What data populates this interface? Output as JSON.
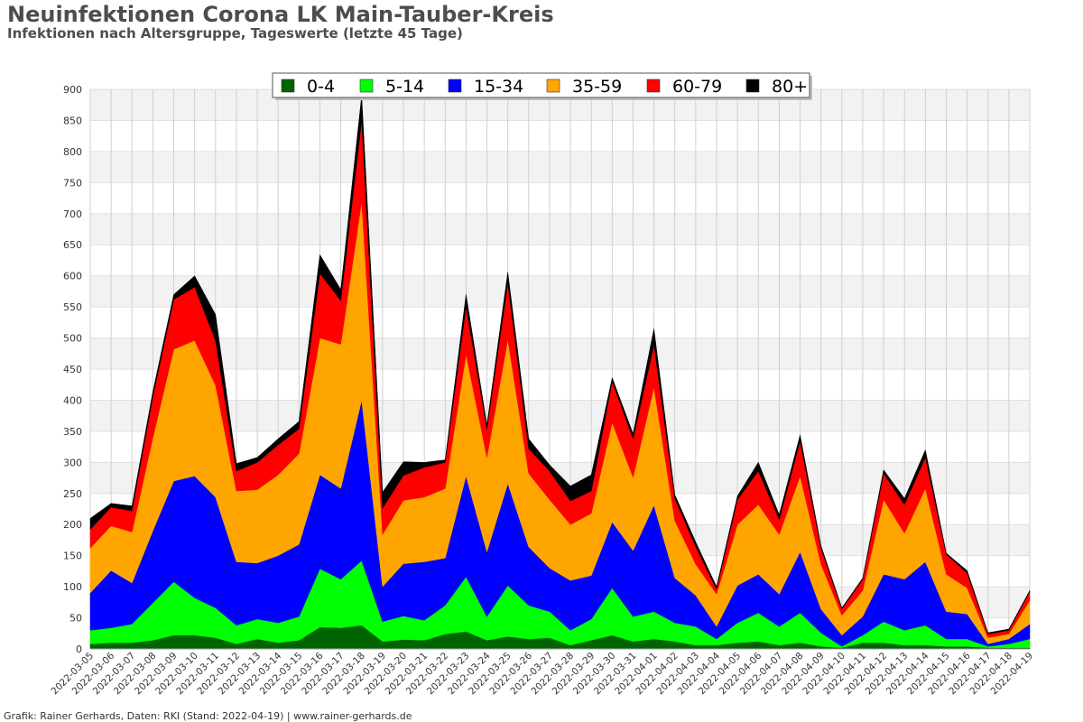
{
  "header": {
    "title": "Neuinfektionen Corona LK Main-Tauber-Kreis",
    "subtitle": "Infektionen nach Altersgruppe, Tageswerte (letzte 45 Tage)"
  },
  "footer": {
    "text": "Grafik: Rainer Gerhards, Daten: RKI (Stand: 2022-04-19) | www.rainer-gerhards.de"
  },
  "chart_data": {
    "type": "area",
    "stacked": true,
    "title": "Neuinfektionen Corona LK Main-Tauber-Kreis",
    "subtitle": "Infektionen nach Altersgruppe, Tageswerte (letzte 45 Tage)",
    "xlabel": "",
    "ylabel": "",
    "ylim": [
      0,
      900
    ],
    "yticks": [
      0,
      50,
      100,
      150,
      200,
      250,
      300,
      350,
      400,
      450,
      500,
      550,
      600,
      650,
      700,
      750,
      800,
      850,
      900
    ],
    "grid": true,
    "legend_position": "top",
    "categories": [
      "2022-03-05",
      "2022-03-06",
      "2022-03-07",
      "2022-03-08",
      "2022-03-09",
      "2022-03-10",
      "2022-03-11",
      "2022-03-12",
      "2022-03-13",
      "2022-03-14",
      "2022-03-15",
      "2022-03-16",
      "2022-03-17",
      "2022-03-18",
      "2022-03-19",
      "2022-03-20",
      "2022-03-21",
      "2022-03-22",
      "2022-03-23",
      "2022-03-24",
      "2022-03-25",
      "2022-03-26",
      "2022-03-27",
      "2022-03-28",
      "2022-03-29",
      "2022-03-30",
      "2022-03-31",
      "2022-04-01",
      "2022-04-02",
      "2022-04-03",
      "2022-04-04",
      "2022-04-05",
      "2022-04-06",
      "2022-04-07",
      "2022-04-08",
      "2022-04-09",
      "2022-04-10",
      "2022-04-11",
      "2022-04-12",
      "2022-04-13",
      "2022-04-14",
      "2022-04-15",
      "2022-04-16",
      "2022-04-17",
      "2022-04-18",
      "2022-04-19"
    ],
    "series": [
      {
        "name": "0-4",
        "color": "#006400",
        "values": [
          8,
          10,
          10,
          14,
          22,
          22,
          18,
          8,
          16,
          10,
          14,
          35,
          34,
          38,
          12,
          15,
          14,
          24,
          28,
          14,
          20,
          16,
          18,
          6,
          14,
          22,
          12,
          16,
          12,
          6,
          6,
          10,
          12,
          6,
          10,
          4,
          2,
          10,
          10,
          6,
          6,
          4,
          4,
          2,
          2,
          2
        ]
      },
      {
        "name": "5-14",
        "color": "#00ff00",
        "values": [
          22,
          24,
          30,
          60,
          86,
          60,
          48,
          30,
          32,
          32,
          38,
          94,
          78,
          104,
          32,
          38,
          32,
          46,
          88,
          38,
          82,
          54,
          42,
          24,
          34,
          76,
          40,
          44,
          30,
          30,
          10,
          32,
          46,
          30,
          48,
          22,
          2,
          12,
          34,
          24,
          32,
          12,
          12,
          2,
          6,
          14
        ]
      },
      {
        "name": "15-34",
        "color": "#0000ff",
        "values": [
          60,
          92,
          66,
          116,
          162,
          196,
          178,
          102,
          90,
          108,
          116,
          151,
          146,
          258,
          56,
          84,
          94,
          76,
          162,
          104,
          164,
          94,
          70,
          80,
          70,
          106,
          106,
          171,
          72,
          50,
          20,
          60,
          62,
          52,
          98,
          38,
          18,
          30,
          76,
          82,
          102,
          44,
          40,
          4,
          8,
          24
        ]
      },
      {
        "name": "35-59",
        "color": "#ffa500",
        "values": [
          72,
          72,
          82,
          150,
          212,
          218,
          180,
          114,
          118,
          130,
          146,
          220,
          232,
          320,
          84,
          102,
          104,
          112,
          196,
          152,
          232,
          118,
          110,
          90,
          100,
          160,
          118,
          190,
          92,
          50,
          52,
          98,
          112,
          96,
          122,
          72,
          32,
          42,
          120,
          74,
          118,
          60,
          42,
          10,
          8,
          38
        ]
      },
      {
        "name": "60-79",
        "color": "#ff0000",
        "values": [
          30,
          30,
          34,
          66,
          80,
          86,
          72,
          32,
          44,
          48,
          40,
          104,
          70,
          130,
          42,
          40,
          48,
          42,
          76,
          46,
          90,
          40,
          46,
          38,
          36,
          66,
          62,
          68,
          36,
          28,
          8,
          40,
          54,
          24,
          56,
          26,
          10,
          18,
          42,
          46,
          50,
          32,
          24,
          6,
          6,
          14
        ]
      },
      {
        "name": "80+",
        "color": "#000000",
        "values": [
          18,
          6,
          8,
          8,
          8,
          18,
          42,
          12,
          8,
          10,
          12,
          30,
          18,
          40,
          26,
          22,
          8,
          4,
          20,
          6,
          18,
          16,
          10,
          24,
          26,
          6,
          8,
          26,
          6,
          8,
          4,
          6,
          14,
          8,
          10,
          4,
          2,
          2,
          6,
          10,
          12,
          2,
          4,
          2,
          2,
          2
        ]
      }
    ]
  }
}
